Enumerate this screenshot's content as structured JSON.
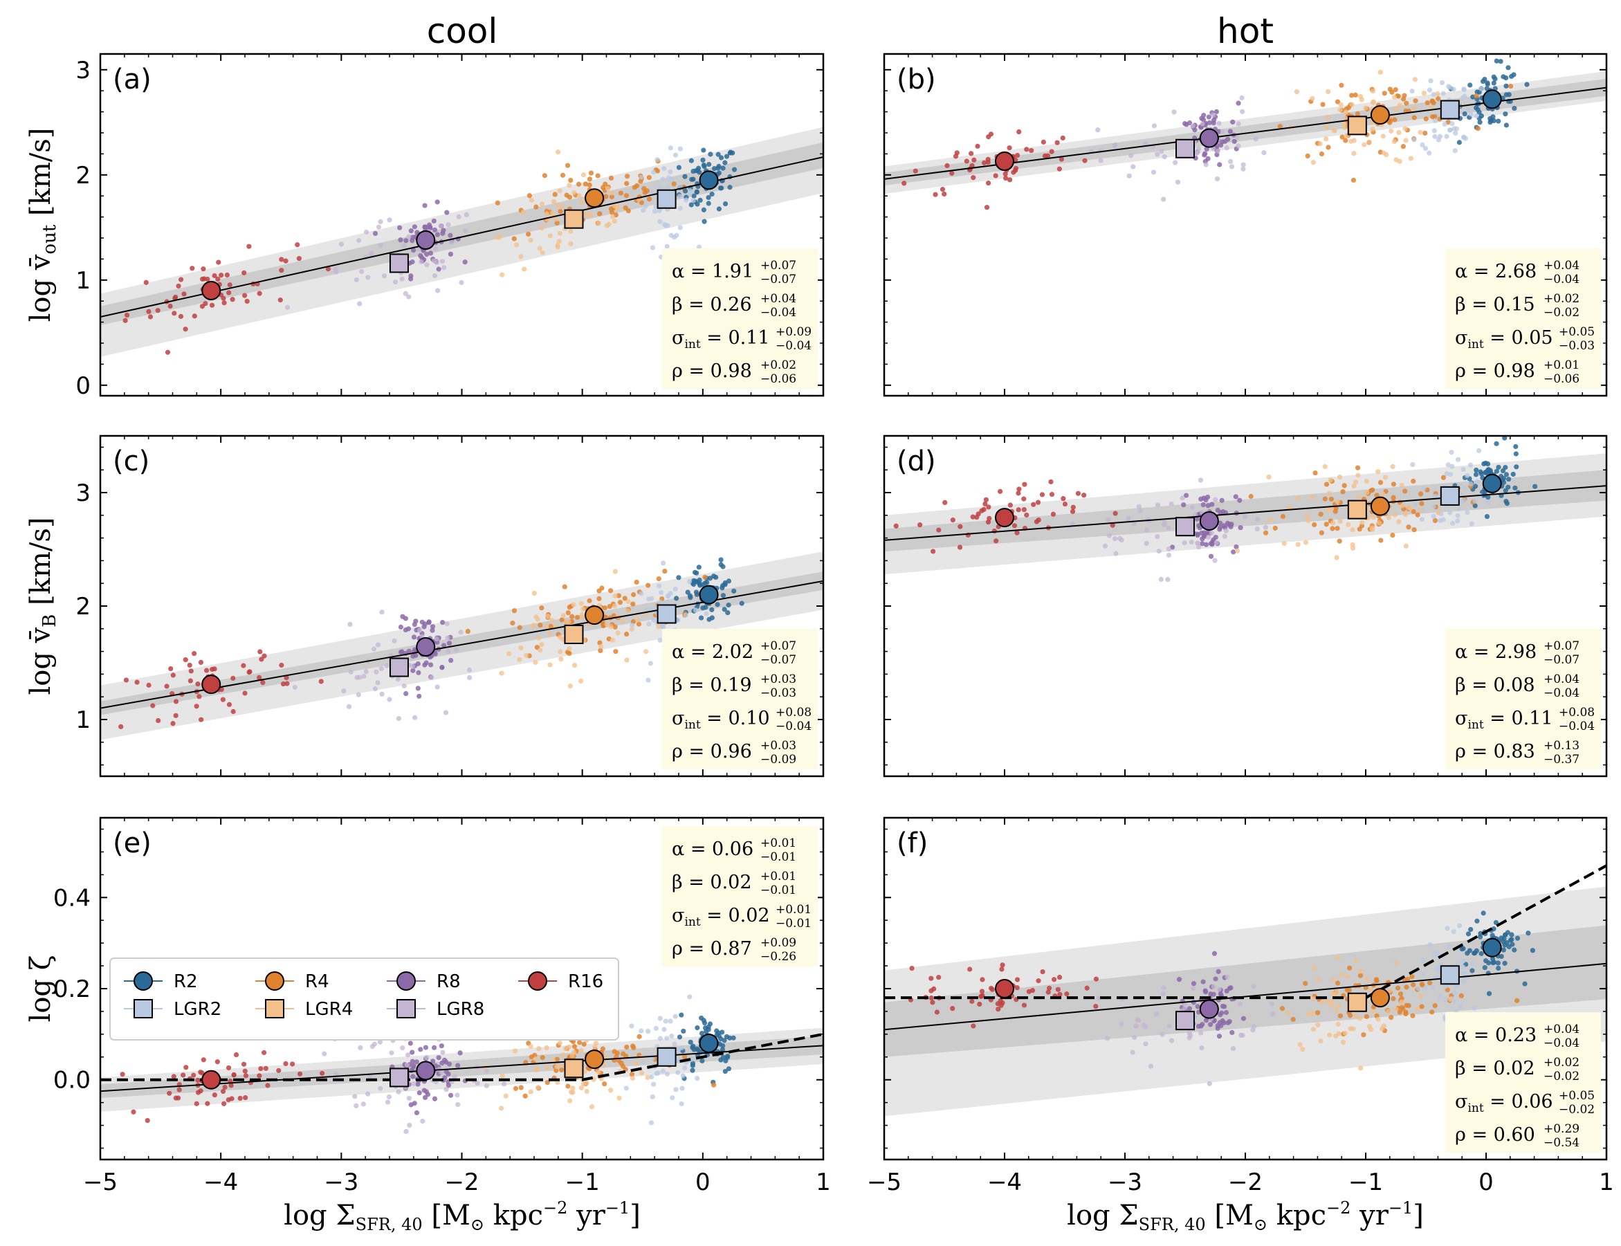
{
  "figure": {
    "column_titles": [
      "cool",
      "hot"
    ],
    "xlabel": "log Σ_SFR,40 [M⊙ kpc⁻² yr⁻¹]",
    "ylabels": [
      "log v̄_out [km/s]",
      "log v̄_B [km/s]",
      "log ζ"
    ]
  },
  "legend": [
    {
      "label": "R2",
      "marker": "circle",
      "color": "#2b6a96"
    },
    {
      "label": "R4",
      "marker": "circle",
      "color": "#e0832e"
    },
    {
      "label": "R8",
      "marker": "circle",
      "color": "#8c6aa8"
    },
    {
      "label": "R16",
      "marker": "circle",
      "color": "#c0403f"
    },
    {
      "label": "LGR2",
      "marker": "square",
      "color": "#b9c9e1"
    },
    {
      "label": "LGR4",
      "marker": "square",
      "color": "#f3bf8a"
    },
    {
      "label": "LGR8",
      "marker": "square",
      "color": "#c4b5d3"
    }
  ],
  "chart_data": [
    {
      "type": "scatter",
      "panel": "(a)",
      "column": "cool",
      "xlim": [
        -5,
        1
      ],
      "ylim": [
        -0.1,
        3.15
      ],
      "xticks": [
        "−5",
        "−4",
        "−3",
        "−2",
        "−1",
        "0",
        "1"
      ],
      "yticks": [
        "0",
        "1",
        "2",
        "3"
      ],
      "series": [
        {
          "name": "R2",
          "x": [
            0.05
          ],
          "y": [
            1.95
          ]
        },
        {
          "name": "R4",
          "x": [
            -0.9
          ],
          "y": [
            1.78
          ]
        },
        {
          "name": "R8",
          "x": [
            -2.3
          ],
          "y": [
            1.38
          ]
        },
        {
          "name": "R16",
          "x": [
            -4.08
          ],
          "y": [
            0.9
          ]
        },
        {
          "name": "LGR2",
          "x": [
            -0.3
          ],
          "y": [
            1.77
          ]
        },
        {
          "name": "LGR4",
          "x": [
            -1.07
          ],
          "y": [
            1.58
          ]
        },
        {
          "name": "LGR8",
          "x": [
            -2.52
          ],
          "y": [
            1.16
          ]
        }
      ],
      "fit": {
        "x": [
          -5,
          1
        ],
        "y": [
          0.65,
          2.17
        ]
      },
      "band": [
        -0.08,
        0.1,
        -0.38,
        0.22
      ],
      "stats": {
        "alpha": "1.91",
        "alpha_up": "+0.07",
        "alpha_lo": "−0.07",
        "beta": "0.26",
        "beta_up": "+0.04",
        "beta_lo": "−0.04",
        "sigma": "0.11",
        "sigma_up": "+0.09",
        "sigma_lo": "−0.04",
        "rho": "0.98",
        "rho_up": "+0.02",
        "rho_lo": "−0.06"
      },
      "stats_pos": "bottom-right"
    },
    {
      "type": "scatter",
      "panel": "(b)",
      "column": "hot",
      "xlim": [
        -5,
        1
      ],
      "ylim": [
        -0.1,
        3.15
      ],
      "xticks": [
        "−5",
        "−4",
        "−3",
        "−2",
        "−1",
        "0",
        "1"
      ],
      "yticks": [
        "0",
        "1",
        "2",
        "3"
      ],
      "series": [
        {
          "name": "R2",
          "x": [
            0.05
          ],
          "y": [
            2.72
          ]
        },
        {
          "name": "R4",
          "x": [
            -0.88
          ],
          "y": [
            2.57
          ]
        },
        {
          "name": "R8",
          "x": [
            -2.3
          ],
          "y": [
            2.35
          ]
        },
        {
          "name": "R16",
          "x": [
            -4.0
          ],
          "y": [
            2.13
          ]
        },
        {
          "name": "LGR2",
          "x": [
            -0.3
          ],
          "y": [
            2.62
          ]
        },
        {
          "name": "LGR4",
          "x": [
            -1.07
          ],
          "y": [
            2.47
          ]
        },
        {
          "name": "LGR8",
          "x": [
            -2.5
          ],
          "y": [
            2.25
          ]
        }
      ],
      "fit": {
        "x": [
          -5,
          1
        ],
        "y": [
          1.96,
          2.83
        ]
      },
      "band": [
        -0.06,
        0.06,
        -0.14,
        0.12
      ],
      "stats": {
        "alpha": "2.68",
        "alpha_up": "+0.04",
        "alpha_lo": "−0.04",
        "beta": "0.15",
        "beta_up": "+0.02",
        "beta_lo": "−0.02",
        "sigma": "0.05",
        "sigma_up": "+0.05",
        "sigma_lo": "−0.03",
        "rho": "0.98",
        "rho_up": "+0.01",
        "rho_lo": "−0.06"
      },
      "stats_pos": "bottom-right"
    },
    {
      "type": "scatter",
      "panel": "(c)",
      "column": "cool",
      "xlim": [
        -5,
        1
      ],
      "ylim": [
        0.5,
        3.5
      ],
      "xticks": [
        "−5",
        "−4",
        "−3",
        "−2",
        "−1",
        "0",
        "1"
      ],
      "yticks": [
        "1",
        "2",
        "3"
      ],
      "series": [
        {
          "name": "R2",
          "x": [
            0.05
          ],
          "y": [
            2.1
          ]
        },
        {
          "name": "R4",
          "x": [
            -0.9
          ],
          "y": [
            1.92
          ]
        },
        {
          "name": "R8",
          "x": [
            -2.3
          ],
          "y": [
            1.64
          ]
        },
        {
          "name": "R16",
          "x": [
            -4.08
          ],
          "y": [
            1.31
          ]
        },
        {
          "name": "LGR2",
          "x": [
            -0.3
          ],
          "y": [
            1.93
          ]
        },
        {
          "name": "LGR4",
          "x": [
            -1.07
          ],
          "y": [
            1.75
          ]
        },
        {
          "name": "LGR8",
          "x": [
            -2.52
          ],
          "y": [
            1.46
          ]
        }
      ],
      "fit": {
        "x": [
          -5,
          1
        ],
        "y": [
          1.1,
          2.22
        ]
      },
      "band": [
        -0.06,
        0.06,
        -0.28,
        0.2
      ],
      "stats": {
        "alpha": "2.02",
        "alpha_up": "+0.07",
        "alpha_lo": "−0.07",
        "beta": "0.19",
        "beta_up": "+0.03",
        "beta_lo": "−0.03",
        "sigma": "0.10",
        "sigma_up": "+0.08",
        "sigma_lo": "−0.04",
        "rho": "0.96",
        "rho_up": "+0.03",
        "rho_lo": "−0.09"
      },
      "stats_pos": "bottom-right"
    },
    {
      "type": "scatter",
      "panel": "(d)",
      "column": "hot",
      "xlim": [
        -5,
        1
      ],
      "ylim": [
        0.5,
        3.5
      ],
      "xticks": [
        "−5",
        "−4",
        "−3",
        "−2",
        "−1",
        "0",
        "1"
      ],
      "yticks": [
        "1",
        "2",
        "3"
      ],
      "series": [
        {
          "name": "R2",
          "x": [
            0.05
          ],
          "y": [
            3.08
          ]
        },
        {
          "name": "R4",
          "x": [
            -0.88
          ],
          "y": [
            2.88
          ]
        },
        {
          "name": "R8",
          "x": [
            -2.3
          ],
          "y": [
            2.75
          ]
        },
        {
          "name": "R16",
          "x": [
            -4.0
          ],
          "y": [
            2.78
          ]
        },
        {
          "name": "LGR2",
          "x": [
            -0.3
          ],
          "y": [
            2.97
          ]
        },
        {
          "name": "LGR4",
          "x": [
            -1.07
          ],
          "y": [
            2.85
          ]
        },
        {
          "name": "LGR8",
          "x": [
            -2.5
          ],
          "y": [
            2.7
          ]
        }
      ],
      "fit": {
        "x": [
          -5,
          1
        ],
        "y": [
          2.58,
          3.06
        ]
      },
      "band": [
        -0.1,
        0.1,
        -0.3,
        0.22
      ],
      "stats": {
        "alpha": "2.98",
        "alpha_up": "+0.07",
        "alpha_lo": "−0.07",
        "beta": "0.08",
        "beta_up": "+0.04",
        "beta_lo": "−0.04",
        "sigma": "0.11",
        "sigma_up": "+0.08",
        "sigma_lo": "−0.04",
        "rho": "0.83",
        "rho_up": "+0.13",
        "rho_lo": "−0.37"
      },
      "stats_pos": "bottom-right"
    },
    {
      "type": "scatter",
      "panel": "(e)",
      "column": "cool",
      "xlim": [
        -5,
        1
      ],
      "ylim": [
        -0.175,
        0.575
      ],
      "xticks": [
        "−5",
        "−4",
        "−3",
        "−2",
        "−1",
        "0",
        "1"
      ],
      "yticks": [
        "0.0",
        "0.2",
        "0.4"
      ],
      "series": [
        {
          "name": "R2",
          "x": [
            0.05
          ],
          "y": [
            0.08
          ]
        },
        {
          "name": "R4",
          "x": [
            -0.9
          ],
          "y": [
            0.045
          ]
        },
        {
          "name": "R8",
          "x": [
            -2.3
          ],
          "y": [
            0.02
          ]
        },
        {
          "name": "R16",
          "x": [
            -4.08
          ],
          "y": [
            0.0
          ]
        },
        {
          "name": "LGR2",
          "x": [
            -0.3
          ],
          "y": [
            0.05
          ]
        },
        {
          "name": "LGR4",
          "x": [
            -1.07
          ],
          "y": [
            0.025
          ]
        },
        {
          "name": "LGR8",
          "x": [
            -2.52
          ],
          "y": [
            0.005
          ]
        }
      ],
      "fit": {
        "x": [
          -5,
          1
        ],
        "y": [
          -0.025,
          0.075
        ]
      },
      "band": [
        -0.015,
        0.015,
        -0.045,
        0.03
      ],
      "dashed": {
        "x": [
          -5,
          -1.0,
          1
        ],
        "y": [
          0.0,
          0.0,
          0.1
        ]
      },
      "stats": {
        "alpha": "0.06",
        "alpha_up": "+0.01",
        "alpha_lo": "−0.01",
        "beta": "0.02",
        "beta_up": "+0.01",
        "beta_lo": "−0.01",
        "sigma": "0.02",
        "sigma_up": "+0.01",
        "sigma_lo": "−0.01",
        "rho": "0.87",
        "rho_up": "+0.09",
        "rho_lo": "−0.26"
      },
      "stats_pos": "top-right",
      "legend": true
    },
    {
      "type": "scatter",
      "panel": "(f)",
      "column": "hot",
      "xlim": [
        -5,
        1
      ],
      "ylim": [
        -0.175,
        0.575
      ],
      "xticks": [
        "−5",
        "−4",
        "−3",
        "−2",
        "−1",
        "0",
        "1"
      ],
      "yticks": [
        "0.0",
        "0.2",
        "0.4"
      ],
      "series": [
        {
          "name": "R2",
          "x": [
            0.05
          ],
          "y": [
            0.29
          ]
        },
        {
          "name": "R4",
          "x": [
            -0.88
          ],
          "y": [
            0.18
          ]
        },
        {
          "name": "R8",
          "x": [
            -2.3
          ],
          "y": [
            0.155
          ]
        },
        {
          "name": "R16",
          "x": [
            -4.0
          ],
          "y": [
            0.2
          ]
        },
        {
          "name": "LGR2",
          "x": [
            -0.3
          ],
          "y": [
            0.23
          ]
        },
        {
          "name": "LGR4",
          "x": [
            -1.07
          ],
          "y": [
            0.17
          ]
        },
        {
          "name": "LGR8",
          "x": [
            -2.5
          ],
          "y": [
            0.13
          ]
        }
      ],
      "fit": {
        "x": [
          -5,
          1
        ],
        "y": [
          0.11,
          0.255
        ]
      },
      "band": [
        -0.06,
        0.06,
        -0.19,
        0.13
      ],
      "dashed": {
        "x": [
          -5,
          -1.0,
          1
        ],
        "y": [
          0.18,
          0.18,
          0.47
        ]
      },
      "stats": {
        "alpha": "0.23",
        "alpha_up": "+0.04",
        "alpha_lo": "−0.04",
        "beta": "0.02",
        "beta_up": "+0.02",
        "beta_lo": "−0.02",
        "sigma": "0.06",
        "sigma_up": "+0.05",
        "sigma_lo": "−0.02",
        "rho": "0.60",
        "rho_up": "+0.29",
        "rho_lo": "−0.54"
      },
      "stats_pos": "bottom-right"
    }
  ]
}
